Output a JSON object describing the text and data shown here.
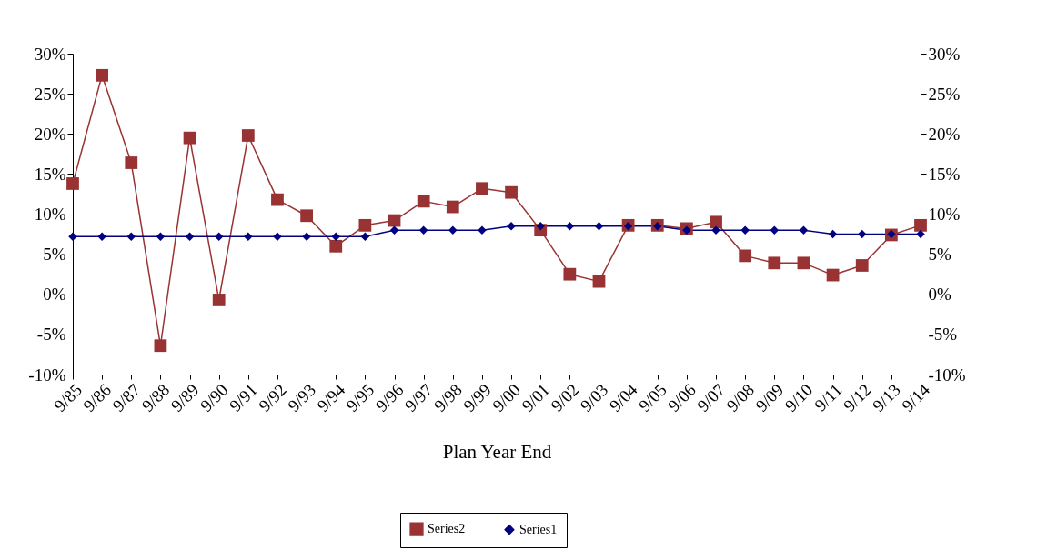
{
  "chart_data": {
    "type": "line",
    "xlabel": "Plan Year End",
    "categories": [
      "9/85",
      "9/86",
      "9/87",
      "9/88",
      "9/89",
      "9/90",
      "9/91",
      "9/92",
      "9/93",
      "9/94",
      "9/95",
      "9/96",
      "9/97",
      "9/98",
      "9/99",
      "9/00",
      "9/01",
      "9/02",
      "9/03",
      "9/04",
      "9/05",
      "9/06",
      "9/07",
      "9/08",
      "9/09",
      "9/10",
      "9/11",
      "9/12",
      "9/13",
      "9/14"
    ],
    "series": [
      {
        "name": "Series2",
        "color": "#993333",
        "marker": "square",
        "values": [
          13.8,
          27.3,
          16.4,
          -6.4,
          19.5,
          -0.7,
          19.8,
          11.8,
          9.8,
          6.0,
          8.6,
          9.2,
          11.6,
          10.9,
          13.2,
          12.7,
          8.0,
          2.5,
          1.6,
          8.6,
          8.6,
          8.2,
          9.0,
          4.8,
          3.9,
          3.9,
          2.4,
          3.6,
          7.4,
          8.6
        ]
      },
      {
        "name": "Series1",
        "color": "#000080",
        "marker": "diamond",
        "values": [
          7.2,
          7.2,
          7.2,
          7.2,
          7.2,
          7.2,
          7.2,
          7.2,
          7.2,
          7.2,
          7.2,
          8.0,
          8.0,
          8.0,
          8.0,
          8.5,
          8.5,
          8.5,
          8.5,
          8.5,
          8.5,
          8.0,
          8.0,
          8.0,
          8.0,
          8.0,
          7.5,
          7.5,
          7.5,
          7.5
        ]
      }
    ],
    "ylim": [
      -10,
      30
    ],
    "yticks": [
      {
        "value": -10,
        "label": "-10%"
      },
      {
        "value": -5,
        "label": "-5%"
      },
      {
        "value": 0,
        "label": "0%"
      },
      {
        "value": 5,
        "label": "5%"
      },
      {
        "value": 10,
        "label": "10%"
      },
      {
        "value": 15,
        "label": "15%"
      },
      {
        "value": 20,
        "label": "20%"
      },
      {
        "value": 25,
        "label": "25%"
      },
      {
        "value": 30,
        "label": "30%"
      }
    ],
    "y2lim": [
      -10,
      30
    ],
    "y2ticks": [
      {
        "value": -10,
        "label": "-10%"
      },
      {
        "value": -5,
        "label": "-5%"
      },
      {
        "value": 0,
        "label": "0%"
      },
      {
        "value": 5,
        "label": "5%"
      },
      {
        "value": 10,
        "label": "10%"
      },
      {
        "value": 15,
        "label": "15%"
      },
      {
        "value": 20,
        "label": "20%"
      },
      {
        "value": 25,
        "label": "25%"
      },
      {
        "value": 30,
        "label": "30%"
      }
    ],
    "grid": false,
    "legend": "bottom",
    "line_style": "solid"
  }
}
